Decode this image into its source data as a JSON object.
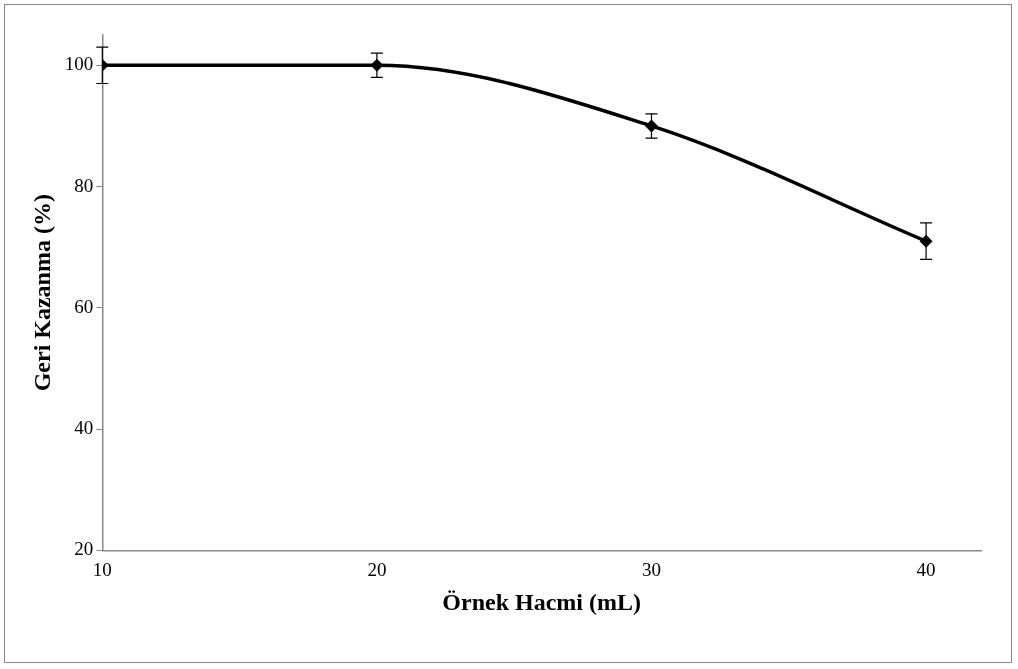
{
  "chart_data": {
    "type": "line",
    "xlabel": "Örnek Hacmi (mL)",
    "ylabel": "Geri Kazanma (%)",
    "x": [
      10,
      20,
      30,
      40
    ],
    "series": [
      {
        "color": "#000000",
        "values": [
          100,
          100,
          90,
          71
        ],
        "errors": [
          3,
          2,
          2,
          3
        ]
      }
    ],
    "xlim": [
      10,
      42
    ],
    "xticks": [
      10,
      20,
      30,
      40
    ],
    "ylim": [
      20,
      105
    ],
    "yticks": [
      20,
      40,
      60,
      80,
      100
    ],
    "grid": false,
    "legend": false,
    "marker": "diamond",
    "line_style": "solid"
  }
}
